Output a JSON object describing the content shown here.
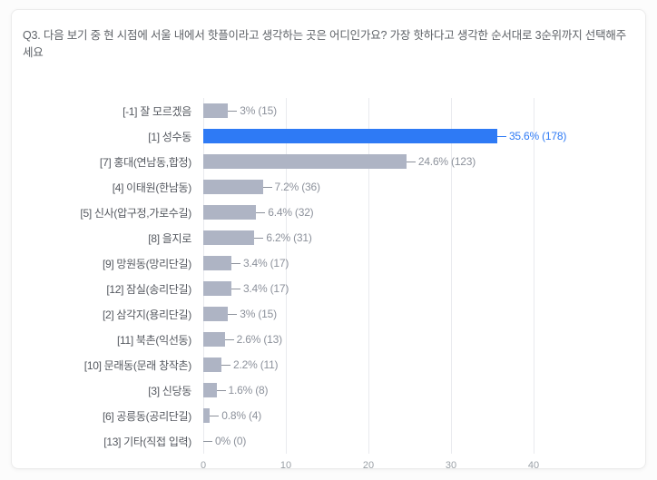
{
  "header": {
    "title": "Q3. 다음 보기 중 현 시점에 서울 내에서 핫플이라고 생각하는 곳은 어디인가요? 가장 핫하다고 생각한 순서대로 3순위까지 선택해주세요"
  },
  "chart_data": {
    "type": "bar",
    "orientation": "horizontal",
    "title": "Q3. 다음 보기 중 현 시점에 서울 내에서 핫플이라고 생각하는 곳은 어디인가요? 가장 핫하다고 생각한 순서대로 3순위까지 선택해주세요",
    "categories": [
      "[-1] 잘 모르겠음",
      "[1] 성수동",
      "[7] 홍대(연남동,합정)",
      "[4] 이태원(한남동)",
      "[5] 신사(압구정,가로수길)",
      "[8] 을지로",
      "[9] 망원동(망리단길)",
      "[12] 잠실(송리단길)",
      "[2] 삼각지(용리단길)",
      "[11] 북촌(익선동)",
      "[10] 문래동(문래 창작촌)",
      "[3] 신당동",
      "[6] 공릉동(공리단길)",
      "[13] 기타(직접 입력)"
    ],
    "values": [
      3,
      35.6,
      24.6,
      7.2,
      6.4,
      6.2,
      3.4,
      3.4,
      3,
      2.6,
      2.2,
      1.6,
      0.8,
      0
    ],
    "counts": [
      15,
      178,
      123,
      36,
      32,
      31,
      17,
      17,
      15,
      13,
      11,
      8,
      4,
      0
    ],
    "value_labels": [
      "3% (15)",
      "35.6% (178)",
      "24.6% (123)",
      "7.2% (36)",
      "6.4% (32)",
      "6.2% (31)",
      "3.4% (17)",
      "3.4% (17)",
      "3% (15)",
      "2.6% (13)",
      "2.2% (11)",
      "1.6% (8)",
      "0.8% (4)",
      "0% (0)"
    ],
    "highlight_index": 1,
    "x_ticks": [
      0,
      10,
      20,
      30,
      40
    ],
    "xlim": [
      0,
      46
    ],
    "grid": true,
    "legend": "none",
    "xlabel": "",
    "ylabel": "",
    "colors": {
      "bar": "#aeb4c4",
      "bar_highlight": "#2e7af5",
      "value_text": "#8c919b",
      "value_text_highlight": "#2e7af5",
      "gridline": "#e9eaee",
      "axis_text": "#9aa0a6",
      "category_text": "#54585f",
      "title_text": "#5f6368"
    }
  }
}
